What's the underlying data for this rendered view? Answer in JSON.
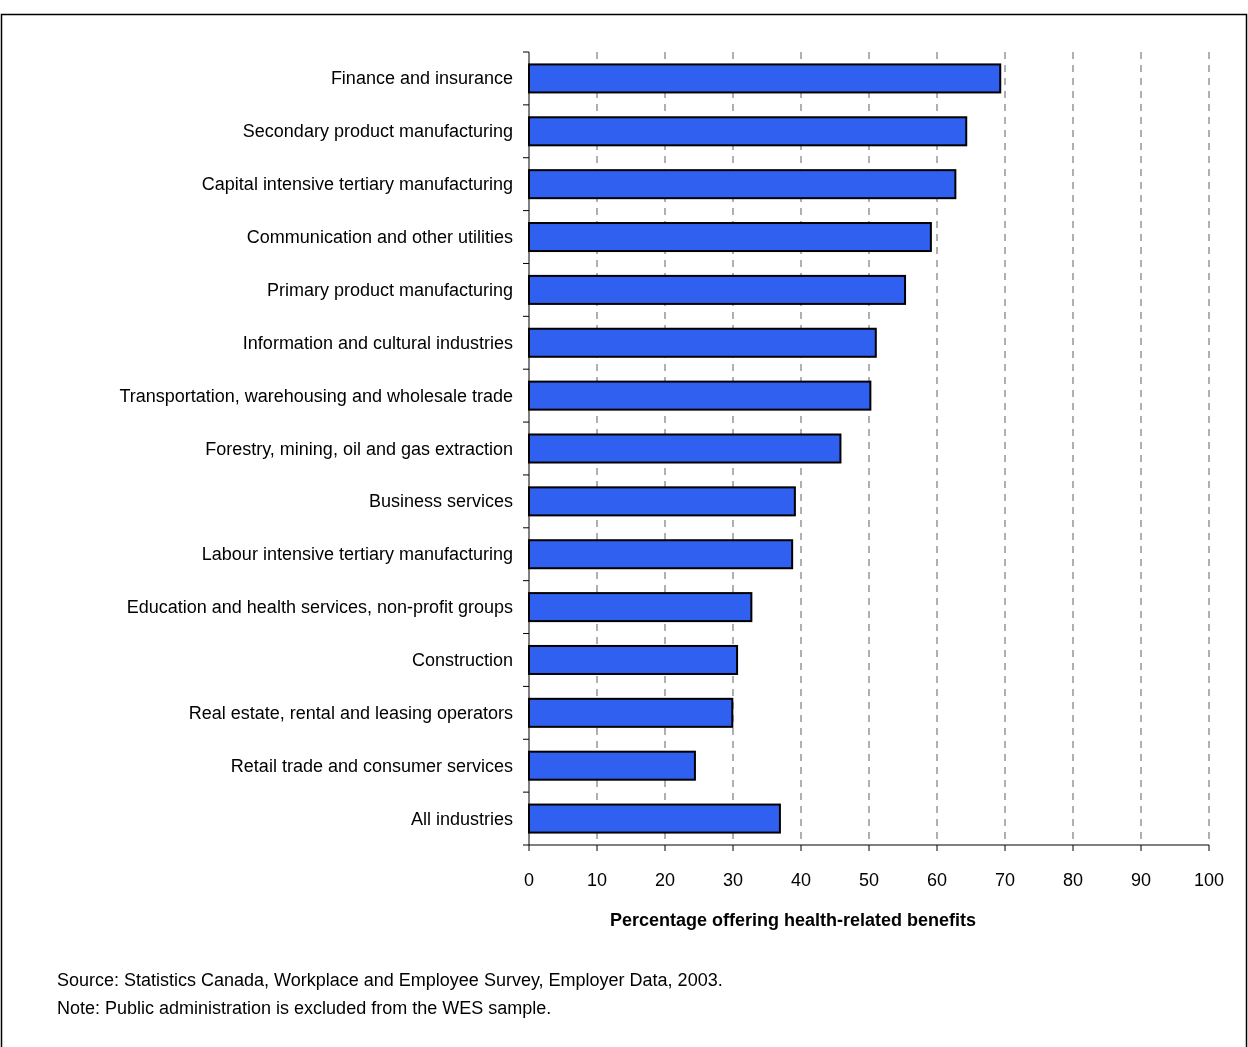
{
  "chart_data": {
    "type": "bar",
    "orientation": "horizontal",
    "xlabel": "Percentage offering health-related benefits",
    "categories": [
      "Finance and insurance",
      "Secondary product manufacturing",
      "Capital intensive tertiary manufacturing",
      "Communication and other utilities",
      "Primary product manufacturing",
      "Information and cultural industries",
      "Transportation, warehousing and wholesale trade",
      "Forestry, mining, oil and gas extraction",
      "Business services",
      "Labour intensive tertiary manufacturing",
      "Education and health services, non-profit groups",
      "Construction",
      "Real estate, rental and leasing operators",
      "Retail trade and consumer services",
      "All industries"
    ],
    "values": [
      69.3,
      64.3,
      62.7,
      59.1,
      55.3,
      51.0,
      50.2,
      45.8,
      39.1,
      38.7,
      32.7,
      30.6,
      29.9,
      24.4,
      36.9
    ],
    "color": "#3060f0",
    "xlim": [
      0,
      100
    ],
    "xticks": [
      0,
      10,
      20,
      30,
      40,
      50,
      60,
      70,
      80,
      90,
      100
    ],
    "grid": "x",
    "annotations": [
      "Source: Statistics Canada, Workplace and Employee Survey, Employer Data, 2003.",
      "Note: Public administration is excluded from the WES sample."
    ]
  }
}
